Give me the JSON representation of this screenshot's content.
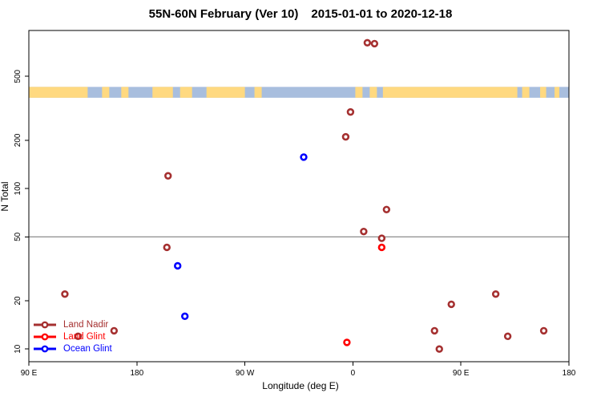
{
  "title": {
    "main": "55N-60N February (Ver 10)",
    "range": "2015-01-01 to 2020-12-18"
  },
  "axes": {
    "x": {
      "label": "Longitude (deg E)",
      "ticks": [
        {
          "x_deg_ext": 90,
          "label": "90 E"
        },
        {
          "x_deg_ext": 180,
          "label": "180"
        },
        {
          "x_deg_ext": 270,
          "label": "90 W"
        },
        {
          "x_deg_ext": 360,
          "label": "0"
        },
        {
          "x_deg_ext": 450,
          "label": "90 E"
        },
        {
          "x_deg_ext": 540,
          "label": "180"
        }
      ],
      "wrap_note": "axis runs 90E eastward through 180, 90W, 0, 90E to 180 (450 deg span)"
    },
    "y": {
      "label": "N Total",
      "scale": "log10",
      "ticks": [
        10,
        20,
        50,
        100,
        200,
        500
      ]
    }
  },
  "reference_line": {
    "n_value": 50,
    "color": "#7f7f7f"
  },
  "map_strip": {
    "meaning": "land/ocean map band for 55N-60N latitude zone",
    "ocean_color": "#A8BEDE",
    "land_color": "#FFD980",
    "n_top_value": 430,
    "n_bottom_value": 368,
    "land_segments_deg_ext": [
      [
        90,
        139
      ],
      [
        151,
        157
      ],
      [
        167,
        173
      ],
      [
        193,
        210
      ],
      [
        216,
        226
      ],
      [
        238,
        270
      ],
      [
        278,
        284
      ],
      [
        362,
        368
      ],
      [
        374,
        380
      ],
      [
        385,
        497
      ],
      [
        501,
        507
      ],
      [
        516,
        521
      ],
      [
        528,
        532
      ]
    ]
  },
  "legend": {
    "items": [
      {
        "label": "Land Nadir",
        "color": "#A53030"
      },
      {
        "label": "Land Glint",
        "color": "#FF0000"
      },
      {
        "label": "Ocean Glint",
        "color": "#0000FF"
      }
    ]
  },
  "chart_data": {
    "type": "scatter",
    "title": "55N-60N February (Ver 10)   2015-01-01 to 2020-12-18",
    "xlabel": "Longitude (deg E)",
    "ylabel": "N Total",
    "xlim_deg_ext": [
      90,
      540
    ],
    "ylim": [
      9,
      1000
    ],
    "grid": false,
    "legend_position": "bottom-left",
    "series": [
      {
        "name": "Land Nadir",
        "color": "#A53030",
        "points": [
          {
            "x_deg_ext": 372,
            "n": 810
          },
          {
            "x_deg_ext": 378,
            "n": 800
          },
          {
            "x_deg_ext": 358,
            "n": 300
          },
          {
            "x_deg_ext": 354,
            "n": 210
          },
          {
            "x_deg_ext": 206,
            "n": 120
          },
          {
            "x_deg_ext": 388,
            "n": 74
          },
          {
            "x_deg_ext": 369,
            "n": 54
          },
          {
            "x_deg_ext": 384,
            "n": 49
          },
          {
            "x_deg_ext": 205,
            "n": 43
          },
          {
            "x_deg_ext": 120,
            "n": 22
          },
          {
            "x_deg_ext": 479,
            "n": 22
          },
          {
            "x_deg_ext": 442,
            "n": 19
          },
          {
            "x_deg_ext": 161,
            "n": 13
          },
          {
            "x_deg_ext": 428,
            "n": 13
          },
          {
            "x_deg_ext": 519,
            "n": 13
          },
          {
            "x_deg_ext": 131,
            "n": 12
          },
          {
            "x_deg_ext": 489,
            "n": 12
          },
          {
            "x_deg_ext": 432,
            "n": 10
          }
        ]
      },
      {
        "name": "Land Glint",
        "color": "#FF0000",
        "points": [
          {
            "x_deg_ext": 384,
            "n": 43
          },
          {
            "x_deg_ext": 355,
            "n": 11
          }
        ]
      },
      {
        "name": "Ocean Glint",
        "color": "#0000FF",
        "points": [
          {
            "x_deg_ext": 319,
            "n": 157
          },
          {
            "x_deg_ext": 214,
            "n": 33
          },
          {
            "x_deg_ext": 220,
            "n": 16
          }
        ]
      }
    ]
  }
}
